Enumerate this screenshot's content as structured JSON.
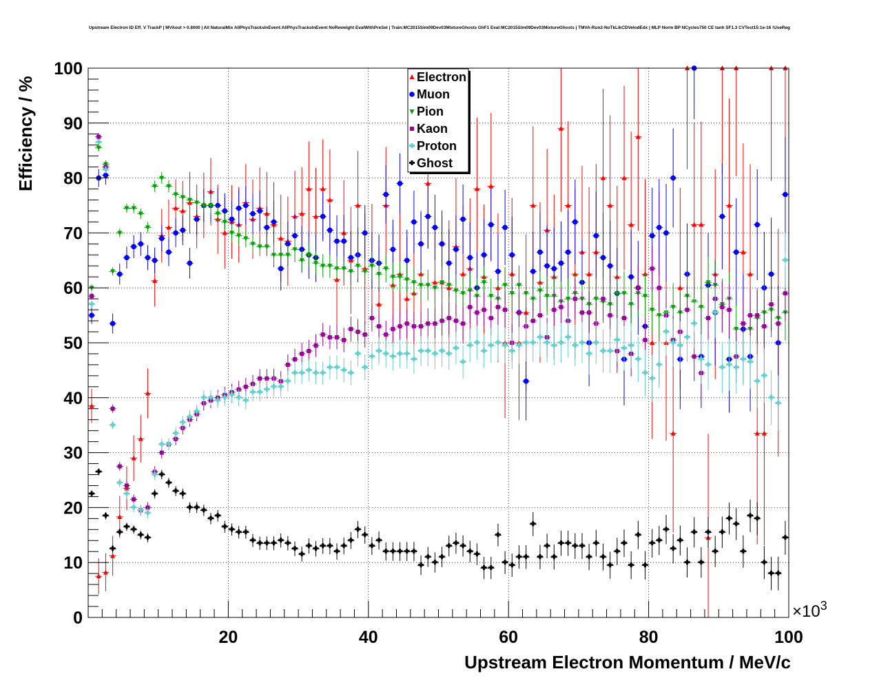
{
  "chart_data": {
    "type": "scatter",
    "title": "Upstream Electron ID Eff. V TrackP | MVAout > 0.6000 | All NaturalMix AllPhysTracksInEvent:AllPhysTracksInEvent NoReweight EvalWithPreSel | Train:MC2015Sim09Dev03MixtureGhosts GhF1 Eval:MC2015Sim09Dev03MixtureGhosts | TMVA-Run2-NoTkLikCDVelodEdx | MLP Norm BP NCycles750 CE tanh SF1.3 CVTest15:1e-16 !UseReg",
    "xlabel": "Upstream Electron Momentum / MeV/c",
    "ylabel": "Efficiency / %",
    "x_multiplier": "×10",
    "x_multiplier_exp": "3",
    "xlim": [
      0,
      100
    ],
    "ylim": [
      0,
      100
    ],
    "x_ticks": [
      "20",
      "40",
      "60",
      "80",
      "100"
    ],
    "y_ticks": [
      "0",
      "10",
      "20",
      "30",
      "40",
      "50",
      "60",
      "70",
      "80",
      "90",
      "100"
    ],
    "grid": true,
    "legend_position": "top-center",
    "x": [
      0.5,
      1.5,
      2.5,
      3.5,
      4.5,
      5.5,
      6.5,
      7.5,
      8.5,
      9.5,
      10.5,
      11.5,
      12.5,
      13.5,
      14.5,
      15.5,
      16.5,
      17.5,
      18.5,
      19.5,
      20.5,
      21.5,
      22.5,
      23.5,
      24.5,
      25.5,
      26.5,
      27.5,
      28.5,
      29.5,
      30.5,
      31.5,
      32.5,
      33.5,
      34.5,
      35.5,
      36.5,
      37.5,
      38.5,
      39.5,
      40.5,
      41.5,
      42.5,
      43.5,
      44.5,
      45.5,
      46.5,
      47.5,
      48.5,
      49.5,
      50.5,
      51.5,
      52.5,
      53.5,
      54.5,
      55.5,
      56.5,
      57.5,
      58.5,
      59.5,
      60.5,
      61.5,
      62.5,
      63.5,
      64.5,
      65.5,
      66.5,
      67.5,
      68.5,
      69.5,
      70.5,
      71.5,
      72.5,
      73.5,
      74.5,
      75.5,
      76.5,
      77.5,
      78.5,
      79.5,
      80.5,
      81.5,
      82.5,
      83.5,
      84.5,
      85.5,
      86.5,
      87.5,
      88.5,
      89.5,
      90.5,
      91.5,
      92.5,
      93.5,
      94.5,
      95.5,
      96.5,
      97.5,
      98.5,
      99.5
    ],
    "series": [
      {
        "name": "Electron",
        "color": "#ff0000",
        "marker": "triangle-up",
        "values": [
          38.5,
          7.5,
          8.2,
          11.2,
          18.3,
          23.5,
          29.0,
          32.5,
          40.8,
          61.3,
          69.5,
          71.0,
          74.5,
          74.0,
          75.5,
          73.0,
          75.0,
          77.5,
          72.5,
          70.0,
          72.0,
          71.5,
          75.5,
          72.5,
          74.5,
          73.5,
          71.5,
          69.0,
          68.5,
          73.0,
          73.5,
          78.0,
          73.0,
          78.0,
          76.0,
          61.5,
          70.0,
          65.0,
          75.0,
          63.5,
          65.0,
          57.0,
          75.0,
          60.5,
          62.5,
          58.0,
          59.0,
          62.5,
          79.0,
          61.0,
          61.0,
          60.0,
          67.5,
          62.5,
          63.5,
          78.0,
          62.0,
          78.5,
          60.0,
          50.0,
          62.5,
          50.0,
          55.5,
          75.0,
          61.0,
          70.5,
          62.0,
          89.0,
          75.0,
          62.5,
          66.5,
          62.5,
          66.5,
          80.0,
          75.0,
          62.0,
          80.0,
          71.5,
          87.5,
          62.5,
          50.0,
          60.0,
          50.0,
          33.5,
          60.0,
          100.0,
          71.5,
          71.5,
          14.5,
          62.5,
          100.0,
          75.0,
          100.0,
          66.5,
          62.5,
          33.5,
          33.5,
          100.0,
          50.0,
          100.0
        ]
      },
      {
        "name": "Muon",
        "color": "#0000ff",
        "marker": "circle",
        "values": [
          55.0,
          80.0,
          80.5,
          53.5,
          62.5,
          65.5,
          67.5,
          68.0,
          65.5,
          65.0,
          69.0,
          66.5,
          70.0,
          70.5,
          64.5,
          72.5,
          75.0,
          75.0,
          75.0,
          74.0,
          72.5,
          74.5,
          75.0,
          73.5,
          74.0,
          71.0,
          72.0,
          63.5,
          68.0,
          69.5,
          67.0,
          66.0,
          65.5,
          73.0,
          70.5,
          68.5,
          68.5,
          65.5,
          66.0,
          70.0,
          65.0,
          64.5,
          77.0,
          67.0,
          79.0,
          65.0,
          72.0,
          68.0,
          73.0,
          71.0,
          68.0,
          64.5,
          67.0,
          72.5,
          65.5,
          60.0,
          66.0,
          71.5,
          63.0,
          71.0,
          66.0,
          55.5,
          43.0,
          63.0,
          66.5,
          64.0,
          63.5,
          64.5,
          66.5,
          72.0,
          61.0,
          50.0,
          69.5,
          65.5,
          64.0,
          59.0,
          47.0,
          62.0,
          60.0,
          53.0,
          69.5,
          71.0,
          70.0,
          80.0,
          47.0,
          62.5,
          100.0,
          47.5,
          60.5,
          55.5,
          73.0,
          47.0,
          66.5,
          52.5,
          47.5,
          71.5,
          60.0,
          62.5,
          50.0,
          77.0
        ]
      },
      {
        "name": "Pion",
        "color": "#00a000",
        "marker": "triangle-down",
        "values": [
          60.0,
          85.5,
          82.5,
          63.0,
          70.0,
          74.5,
          74.5,
          73.5,
          71.0,
          78.5,
          80.0,
          78.5,
          77.0,
          76.5,
          76.0,
          75.5,
          75.0,
          75.0,
          73.5,
          72.0,
          70.0,
          69.5,
          69.0,
          68.0,
          67.5,
          67.5,
          66.0,
          66.0,
          66.0,
          67.0,
          65.0,
          66.0,
          64.5,
          64.0,
          64.0,
          63.5,
          63.5,
          63.0,
          64.0,
          63.0,
          64.0,
          62.5,
          63.5,
          62.0,
          62.0,
          61.5,
          61.0,
          60.5,
          60.5,
          60.0,
          61.0,
          60.5,
          59.5,
          59.0,
          59.5,
          58.5,
          61.0,
          58.5,
          58.0,
          60.5,
          59.0,
          60.5,
          59.0,
          58.0,
          59.5,
          58.5,
          58.5,
          57.5,
          58.0,
          59.0,
          58.0,
          57.0,
          58.0,
          57.5,
          57.0,
          59.0,
          59.0,
          57.0,
          59.0,
          58.5,
          56.0,
          55.0,
          55.5,
          56.5,
          55.5,
          58.5,
          57.5,
          56.5,
          61.0,
          60.5,
          57.0,
          58.0,
          52.5,
          53.5,
          52.5,
          54.5,
          55.5,
          56.0,
          54.5,
          55.5
        ]
      },
      {
        "name": "Kaon",
        "color": "#990099",
        "marker": "square",
        "values": [
          58.5,
          87.5,
          82.0,
          38.0,
          27.5,
          24.0,
          21.5,
          19.5,
          20.0,
          26.5,
          30.0,
          31.5,
          32.5,
          34.5,
          36.0,
          37.0,
          39.0,
          39.5,
          40.0,
          40.5,
          41.0,
          41.5,
          42.0,
          42.5,
          43.5,
          43.5,
          43.5,
          43.0,
          46.0,
          47.0,
          48.0,
          48.5,
          49.5,
          51.5,
          51.0,
          51.0,
          50.5,
          52.5,
          52.0,
          51.5,
          54.5,
          53.0,
          51.5,
          52.5,
          53.0,
          53.5,
          53.0,
          53.0,
          53.5,
          53.5,
          54.0,
          54.5,
          54.0,
          53.5,
          56.5,
          55.5,
          56.0,
          54.5,
          56.5,
          56.0,
          50.0,
          55.5,
          53.0,
          54.0,
          55.0,
          51.0,
          56.0,
          56.5,
          54.0,
          58.0,
          55.5,
          55.5,
          53.5,
          58.0,
          55.0,
          48.5,
          54.5,
          48.0,
          60.0,
          50.5,
          63.5,
          60.0,
          55.0,
          50.5,
          52.0,
          56.0,
          47.5,
          44.5,
          54.5,
          58.0,
          56.5,
          56.0,
          47.5,
          53.5,
          55.0,
          55.0,
          53.0,
          57.0,
          53.5,
          59.0
        ]
      },
      {
        "name": "Proton",
        "color": "#66cccc",
        "marker": "cross",
        "values": [
          57.0,
          86.5,
          81.5,
          35.0,
          24.5,
          22.5,
          20.0,
          19.5,
          19.0,
          26.0,
          31.5,
          31.5,
          33.5,
          35.5,
          36.5,
          37.5,
          40.0,
          40.0,
          39.5,
          40.0,
          40.5,
          40.0,
          39.5,
          41.0,
          41.0,
          41.5,
          42.0,
          42.0,
          43.0,
          44.5,
          44.5,
          45.0,
          44.5,
          44.5,
          45.5,
          45.5,
          45.0,
          44.5,
          48.0,
          45.5,
          47.5,
          48.5,
          48.0,
          47.5,
          48.0,
          48.0,
          47.0,
          48.5,
          48.5,
          48.0,
          48.5,
          48.0,
          49.0,
          46.5,
          49.5,
          50.0,
          48.5,
          49.5,
          50.0,
          49.5,
          48.5,
          49.5,
          50.0,
          50.0,
          51.0,
          50.0,
          49.5,
          50.0,
          51.0,
          49.5,
          50.0,
          48.0,
          50.0,
          48.5,
          48.5,
          50.5,
          49.0,
          49.5,
          47.0,
          44.5,
          43.5,
          46.0,
          52.0,
          50.0,
          49.5,
          51.0,
          53.5,
          47.0,
          46.0,
          55.5,
          45.5,
          46.0,
          45.5,
          47.0,
          46.5,
          43.0,
          44.0,
          40.0,
          39.0,
          65.0
        ]
      },
      {
        "name": "Ghost",
        "color": "#000000",
        "marker": "cross",
        "values": [
          22.5,
          26.5,
          18.5,
          12.5,
          15.5,
          16.5,
          16.0,
          15.0,
          14.5,
          22.5,
          26.0,
          24.5,
          23.0,
          22.5,
          20.0,
          20.0,
          19.5,
          18.0,
          18.5,
          16.5,
          16.0,
          15.5,
          15.5,
          14.0,
          13.5,
          13.5,
          13.5,
          14.0,
          13.5,
          12.5,
          11.5,
          13.0,
          12.5,
          13.0,
          13.0,
          12.0,
          13.0,
          14.0,
          16.0,
          15.0,
          13.0,
          14.0,
          12.0,
          12.0,
          12.0,
          12.0,
          12.0,
          9.5,
          11.0,
          10.0,
          11.0,
          13.0,
          13.5,
          13.0,
          12.0,
          11.5,
          9.0,
          9.0,
          15.0,
          10.0,
          9.5,
          11.0,
          11.0,
          17.0,
          11.0,
          13.0,
          11.0,
          13.5,
          13.5,
          13.0,
          13.0,
          11.0,
          13.5,
          11.0,
          9.5,
          12.0,
          13.5,
          9.5,
          15.0,
          9.5,
          13.5,
          14.0,
          16.0,
          12.5,
          14.0,
          10.0,
          15.5,
          10.0,
          15.5,
          12.0,
          15.5,
          18.0,
          17.0,
          12.0,
          18.5,
          18.0,
          10.0,
          8.0,
          8.0,
          14.5
        ]
      }
    ]
  }
}
